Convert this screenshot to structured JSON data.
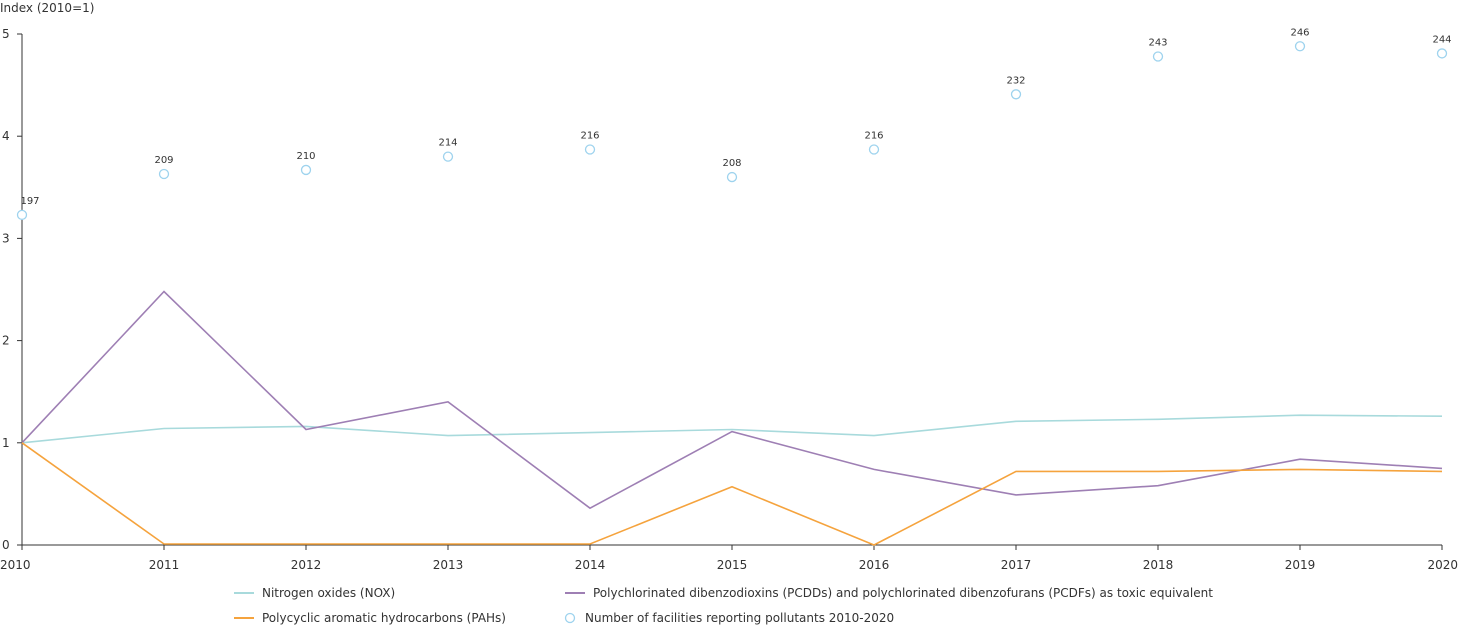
{
  "chart_data": {
    "type": "line",
    "ylabel": "Index (2010=1)",
    "xlabel": "",
    "title": "",
    "x": [
      2010,
      2011,
      2012,
      2013,
      2014,
      2015,
      2016,
      2017,
      2018,
      2019,
      2020
    ],
    "x_tick_labels": [
      "2010",
      "2011",
      "2012",
      "2013",
      "2014",
      "2015",
      "2016",
      "2017",
      "2018",
      "2019",
      "2020"
    ],
    "ylim": [
      0,
      5
    ],
    "y_ticks": [
      0,
      1,
      2,
      3,
      4,
      5
    ],
    "y_tick_labels": [
      "0",
      "1",
      "2",
      "3",
      "4",
      "5"
    ],
    "grid": false,
    "legend_position": "bottom",
    "series": [
      {
        "name": "Nitrogen oxides (NOX)",
        "kind": "line",
        "color": "#a8dadc",
        "values": [
          1.0,
          1.14,
          1.16,
          1.07,
          1.1,
          1.13,
          1.07,
          1.21,
          1.23,
          1.27,
          1.26
        ]
      },
      {
        "name": "Polychlorinated dibenzodioxins (PCDDs) and polychlorinated dibenzofurans (PCDFs) as toxic equivalent",
        "kind": "line",
        "color": "#9e7fb4",
        "values": [
          1.0,
          2.48,
          1.13,
          1.4,
          0.36,
          1.11,
          0.74,
          0.49,
          0.58,
          0.84,
          0.75
        ]
      },
      {
        "name": "Polycyclic aromatic hydrocarbons (PAHs)",
        "kind": "line",
        "color": "#f5a33d",
        "values": [
          1.0,
          0.01,
          0.01,
          0.01,
          0.01,
          0.57,
          0.0,
          0.72,
          0.72,
          0.74,
          0.72
        ]
      },
      {
        "name": "Number of facilities reporting pollutants 2010-2020",
        "kind": "scatter",
        "color": "#9ed3ee",
        "values": [
          3.23,
          3.63,
          3.67,
          3.8,
          3.87,
          3.6,
          3.87,
          4.41,
          4.78,
          4.88,
          4.81
        ],
        "labels": [
          "197",
          "209",
          "210",
          "214",
          "216",
          "208",
          "216",
          "232",
          "243",
          "246",
          "244"
        ]
      }
    ],
    "legend_layout": [
      [
        0,
        1
      ],
      [
        2,
        3
      ]
    ]
  }
}
